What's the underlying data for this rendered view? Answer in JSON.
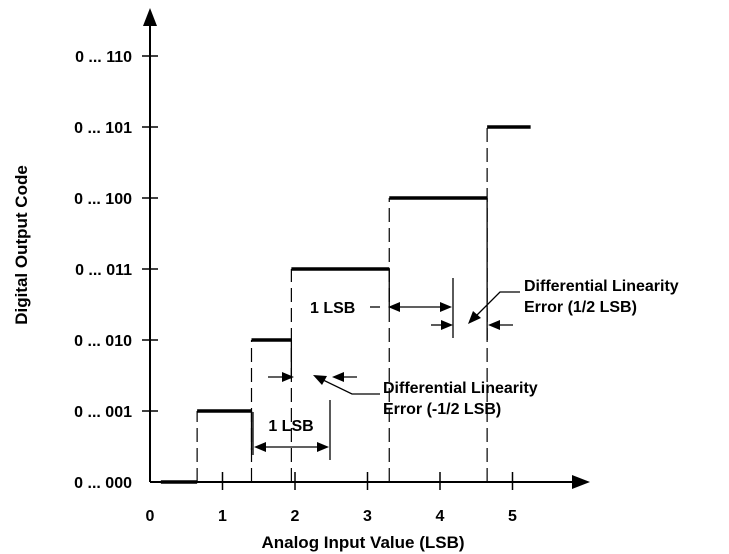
{
  "chart_data": {
    "type": "line",
    "x_title": "Analog Input Value (LSB)",
    "y_title": "Digital Output Code",
    "x_ticks": [
      "0",
      "1",
      "2",
      "3",
      "4",
      "5"
    ],
    "y_ticks": [
      "0 ... 000",
      "0 ... 001",
      "0 ... 010",
      "0 ... 011",
      "0 ... 100",
      "0 ... 101",
      "0 ... 110"
    ],
    "x_range": [
      0,
      5.9
    ],
    "y_range": [
      0,
      6.6
    ],
    "steps": [
      {
        "code": 0,
        "x_start": 0.15,
        "x_end": 0.65
      },
      {
        "code": 1,
        "x_start": 0.65,
        "x_end": 1.4
      },
      {
        "code": 2,
        "x_start": 1.4,
        "x_end": 1.95
      },
      {
        "code": 3,
        "x_start": 1.95,
        "x_end": 3.3
      },
      {
        "code": 4,
        "x_start": 3.3,
        "x_end": 4.65
      },
      {
        "code": 5,
        "x_start": 4.65,
        "x_end": 5.25
      }
    ]
  },
  "annotations": {
    "lsb_lower": "1 LSB",
    "lsb_upper": "1 LSB",
    "dle_lower_line1": "Differential Linearity",
    "dle_lower_line2": "Error (-1/2 LSB)",
    "dle_upper_line1": "Differential Linearity",
    "dle_upper_line2": "Error (1/2 LSB)"
  }
}
